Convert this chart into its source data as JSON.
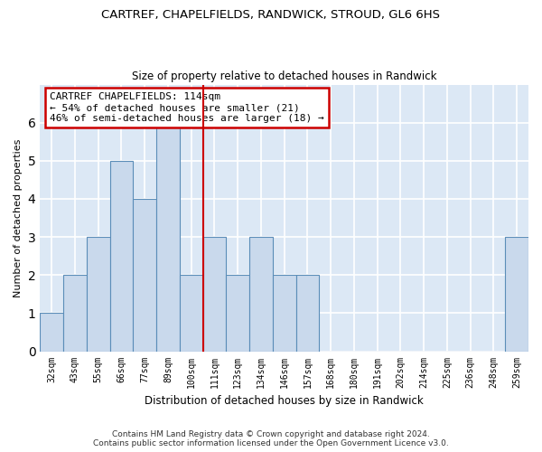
{
  "title_line1": "CARTREF, CHAPELFIELDS, RANDWICK, STROUD, GL6 6HS",
  "title_line2": "Size of property relative to detached houses in Randwick",
  "xlabel": "Distribution of detached houses by size in Randwick",
  "ylabel": "Number of detached properties",
  "footer_line1": "Contains HM Land Registry data © Crown copyright and database right 2024.",
  "footer_line2": "Contains public sector information licensed under the Open Government Licence v3.0.",
  "categories": [
    "32sqm",
    "43sqm",
    "55sqm",
    "66sqm",
    "77sqm",
    "89sqm",
    "100sqm",
    "111sqm",
    "123sqm",
    "134sqm",
    "146sqm",
    "157sqm",
    "168sqm",
    "180sqm",
    "191sqm",
    "202sqm",
    "214sqm",
    "225sqm",
    "236sqm",
    "248sqm",
    "259sqm"
  ],
  "values": [
    1,
    2,
    3,
    5,
    4,
    6,
    2,
    3,
    2,
    3,
    2,
    2,
    0,
    0,
    0,
    0,
    0,
    0,
    0,
    0,
    3
  ],
  "bar_color": "#c9d9ec",
  "bar_edge_color": "#5b8db8",
  "annotation_line1": "CARTREF CHAPELFIELDS: 114sqm",
  "annotation_line2": "← 54% of detached houses are smaller (21)",
  "annotation_line3": "46% of semi-detached houses are larger (18) →",
  "vline_color": "#cc0000",
  "annotation_box_color": "#cc0000",
  "vline_x": 7.0,
  "ylim": [
    0,
    7
  ],
  "yticks": [
    0,
    1,
    2,
    3,
    4,
    5,
    6,
    7
  ],
  "background_color": "#dce8f5",
  "grid_color": "#ffffff"
}
